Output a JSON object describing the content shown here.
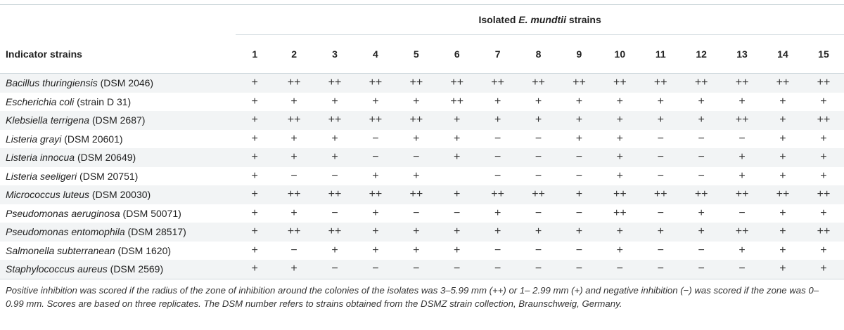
{
  "table": {
    "group_header_before": "Isolated ",
    "group_header_italic": "E. mundtii",
    "group_header_after": " strains",
    "first_col_header": "Indicator strains",
    "columns": [
      "1",
      "2",
      "3",
      "4",
      "5",
      "6",
      "7",
      "8",
      "9",
      "10",
      "11",
      "12",
      "13",
      "14",
      "15"
    ],
    "rows": [
      {
        "species": "Bacillus thuringiensis",
        "strain": " (DSM 2046)",
        "scores": [
          "+",
          "++",
          "++",
          "++",
          "++",
          "++",
          "++",
          "++",
          "++",
          "++",
          "++",
          "++",
          "++",
          "++",
          "++"
        ]
      },
      {
        "species": "Escherichia coli",
        "strain": " (strain D 31)",
        "scores": [
          "+",
          "+",
          "+",
          "+",
          "+",
          "++",
          "+",
          "+",
          "+",
          "+",
          "+",
          "+",
          "+",
          "+",
          "+"
        ]
      },
      {
        "species": "Klebsiella terrigena",
        "strain": " (DSM 2687)",
        "scores": [
          "+",
          "++",
          "++",
          "++",
          "++",
          "+",
          "+",
          "+",
          "+",
          "+",
          "+",
          "+",
          "++",
          "+",
          "++"
        ]
      },
      {
        "species": "Listeria grayi",
        "strain": " (DSM 20601)",
        "scores": [
          "+",
          "+",
          "+",
          "−",
          "+",
          "+",
          "−",
          "−",
          "+",
          "+",
          "−",
          "−",
          "−",
          "+",
          "+"
        ]
      },
      {
        "species": "Listeria innocua",
        "strain": " (DSM 20649)",
        "scores": [
          "+",
          "+",
          "+",
          "−",
          "−",
          "+",
          "−",
          "−",
          "−",
          "+",
          "−",
          "−",
          "+",
          "+",
          "+"
        ]
      },
      {
        "species": "Listeria seeligeri",
        "strain": " (DSM 20751)",
        "scores": [
          "+",
          "−",
          "−",
          "+",
          "+",
          "",
          "−",
          "−",
          "−",
          "+",
          "−",
          "−",
          "+",
          "+",
          "+"
        ]
      },
      {
        "species": "Micrococcus luteus",
        "strain": " (DSM 20030)",
        "scores": [
          "+",
          "++",
          "++",
          "++",
          "++",
          "+",
          "++",
          "++",
          "+",
          "++",
          "++",
          "++",
          "++",
          "++",
          "++"
        ]
      },
      {
        "species": "Pseudomonas aeruginosa",
        "strain": " (DSM 50071)",
        "scores": [
          "+",
          "+",
          "−",
          "+",
          "−",
          "−",
          "+",
          "−",
          "−",
          "++",
          "−",
          "+",
          "−",
          "+",
          "+"
        ]
      },
      {
        "species": "Pseudomonas entomophila",
        "strain": " (DSM 28517)",
        "scores": [
          "+",
          "++",
          "++",
          "+",
          "+",
          "+",
          "+",
          "+",
          "+",
          "+",
          "+",
          "+",
          "++",
          "+",
          "++"
        ]
      },
      {
        "species": "Salmonella subterranean",
        "strain": " (DSM 1620)",
        "scores": [
          "+",
          "−",
          "+",
          "+",
          "+",
          "+",
          "−",
          "−",
          "−",
          "+",
          "−",
          "−",
          "+",
          "+",
          "+"
        ]
      },
      {
        "species": "Staphylococcus aureus",
        "strain": " (DSM 2569)",
        "scores": [
          "+",
          "+",
          "−",
          "−",
          "−",
          "−",
          "−",
          "−",
          "−",
          "−",
          "−",
          "−",
          "−",
          "+",
          "+"
        ]
      }
    ]
  },
  "footnote": {
    "part1": "Positive inhibition was scored if the radius of the zone of inhibition around the colonies of the isolates was 3–5.99 mm (++) or 1– 2.99 mm (+) and negative inhibition (",
    "dash": "−",
    "part2": ") was scored if the zone was 0–0.99 mm. Scores are based on three replicates. The DSM number refers to strains obtained from the DSMZ strain collection, Braunschweig, Germany."
  }
}
